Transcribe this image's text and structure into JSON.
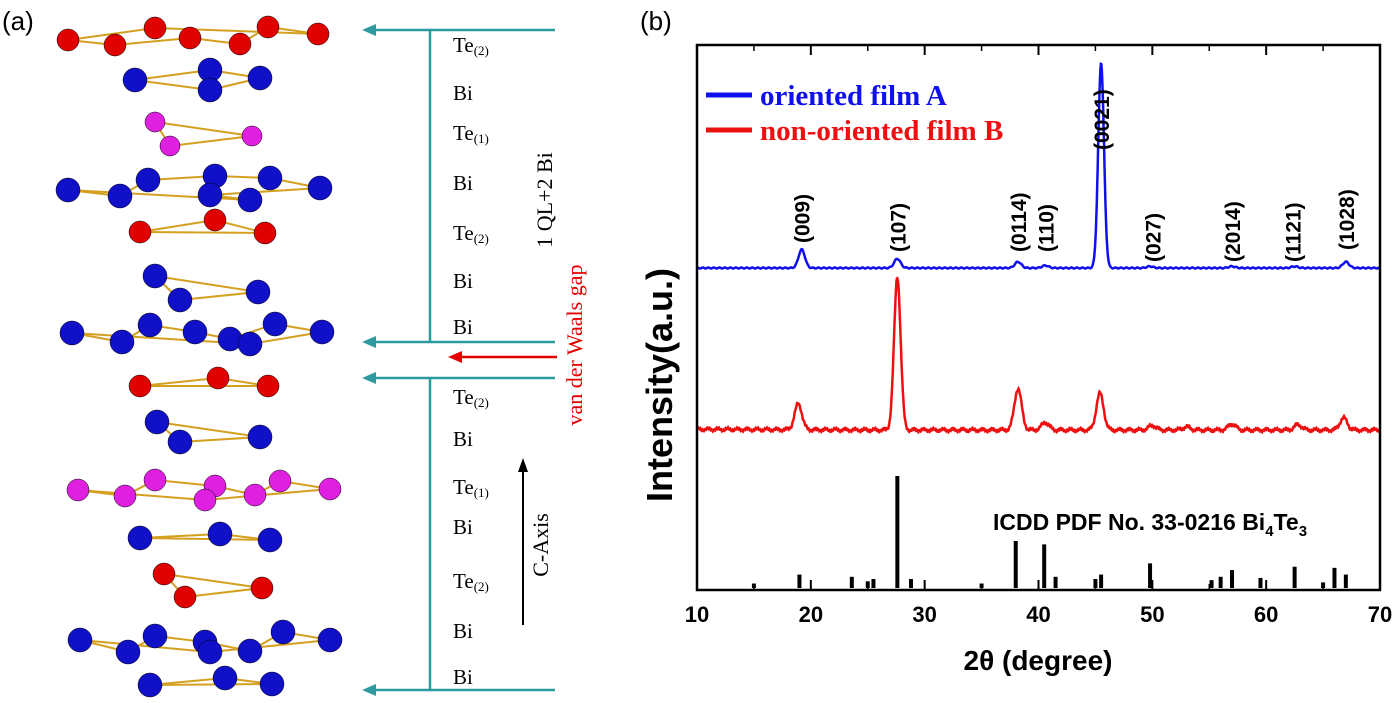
{
  "panel_a": {
    "label": "(a)",
    "layers_top": [
      {
        "name": "Te",
        "sub": "(2)"
      },
      {
        "name": "Bi",
        "sub": ""
      },
      {
        "name": "Te",
        "sub": "(1)"
      },
      {
        "name": "Bi",
        "sub": ""
      },
      {
        "name": "Te",
        "sub": "(2)"
      },
      {
        "name": "Bi",
        "sub": ""
      },
      {
        "name": "Bi",
        "sub": ""
      }
    ],
    "layers_bottom": [
      {
        "name": "Te",
        "sub": "(2)"
      },
      {
        "name": "Bi",
        "sub": ""
      },
      {
        "name": "Te",
        "sub": "(1)"
      },
      {
        "name": "Bi",
        "sub": ""
      },
      {
        "name": "Te",
        "sub": "(2)"
      },
      {
        "name": "Bi",
        "sub": ""
      },
      {
        "name": "Bi",
        "sub": ""
      }
    ],
    "block_label": "1 QL+2 Bi",
    "gap_label": "van der Waals gap",
    "axis_label": "C-Axis",
    "colors": {
      "te2": "#e00000",
      "bi": "#1010c8",
      "te1": "#e020e0",
      "bond": "#d4a020",
      "frame": "#2e9aa0",
      "gap": "#e00000"
    }
  },
  "chart_data": {
    "type": "line",
    "panel_label": "(b)",
    "xlabel": "2θ (degree)",
    "ylabel": "Intensity(a.u.)",
    "xlim": [
      10,
      70
    ],
    "xticks": [
      10,
      20,
      30,
      40,
      50,
      60,
      70
    ],
    "legend": [
      {
        "name": "oriented film",
        "tag": "A",
        "color": "#1010ee"
      },
      {
        "name": "non-oriented film",
        "tag": "B",
        "color": "#ee1010"
      }
    ],
    "series": [
      {
        "name": "oriented film A",
        "color": "#1010ee",
        "peaks": [
          {
            "x": 19.2,
            "h": 0.09
          },
          {
            "x": 27.6,
            "h": 0.045
          },
          {
            "x": 38.2,
            "h": 0.03
          },
          {
            "x": 40.6,
            "h": 0.012
          },
          {
            "x": 45.5,
            "h": 1.0
          },
          {
            "x": 49.8,
            "h": 0.008
          },
          {
            "x": 57.0,
            "h": 0.008
          },
          {
            "x": 62.5,
            "h": 0.008
          },
          {
            "x": 67.0,
            "h": 0.03
          }
        ]
      },
      {
        "name": "non-oriented film B",
        "color": "#ee1010",
        "peaks": [
          {
            "x": 18.9,
            "h": 0.17
          },
          {
            "x": 27.6,
            "h": 1.0
          },
          {
            "x": 38.2,
            "h": 0.27
          },
          {
            "x": 40.6,
            "h": 0.05
          },
          {
            "x": 45.4,
            "h": 0.24
          },
          {
            "x": 50.0,
            "h": 0.03
          },
          {
            "x": 53.0,
            "h": 0.02
          },
          {
            "x": 57.0,
            "h": 0.04
          },
          {
            "x": 62.8,
            "h": 0.035
          },
          {
            "x": 66.8,
            "h": 0.08
          }
        ]
      }
    ],
    "annotations": [
      {
        "text": "(009)",
        "x": 19.2
      },
      {
        "text": "(107)",
        "x": 27.6
      },
      {
        "text": "(0114)",
        "x": 38.2
      },
      {
        "text": "(110)",
        "x": 40.6
      },
      {
        "text": "(0021)",
        "x": 45.5
      },
      {
        "text": "(027)",
        "x": 50.0
      },
      {
        "text": "(2014)",
        "x": 57.0
      },
      {
        "text": "(1121)",
        "x": 62.3
      },
      {
        "text": "(1028)",
        "x": 67.0
      }
    ],
    "reference": {
      "label_prefix": "ICDD PDF No. 33-0216 Bi",
      "sub1": "4",
      "mid": "Te",
      "sub2": "3",
      "sticks": [
        {
          "x": 15.0,
          "h": 0.04
        },
        {
          "x": 19.0,
          "h": 0.12
        },
        {
          "x": 23.6,
          "h": 0.1
        },
        {
          "x": 25.0,
          "h": 0.06
        },
        {
          "x": 25.5,
          "h": 0.08
        },
        {
          "x": 27.6,
          "h": 1.0
        },
        {
          "x": 28.8,
          "h": 0.08
        },
        {
          "x": 35.0,
          "h": 0.04
        },
        {
          "x": 38.0,
          "h": 0.42
        },
        {
          "x": 40.5,
          "h": 0.39
        },
        {
          "x": 41.5,
          "h": 0.1
        },
        {
          "x": 45.0,
          "h": 0.08
        },
        {
          "x": 45.5,
          "h": 0.12
        },
        {
          "x": 49.8,
          "h": 0.22
        },
        {
          "x": 55.2,
          "h": 0.07
        },
        {
          "x": 56.0,
          "h": 0.1
        },
        {
          "x": 57.0,
          "h": 0.16
        },
        {
          "x": 59.5,
          "h": 0.09
        },
        {
          "x": 62.5,
          "h": 0.19
        },
        {
          "x": 65.0,
          "h": 0.05
        },
        {
          "x": 66.0,
          "h": 0.18
        },
        {
          "x": 67.0,
          "h": 0.12
        }
      ]
    }
  }
}
